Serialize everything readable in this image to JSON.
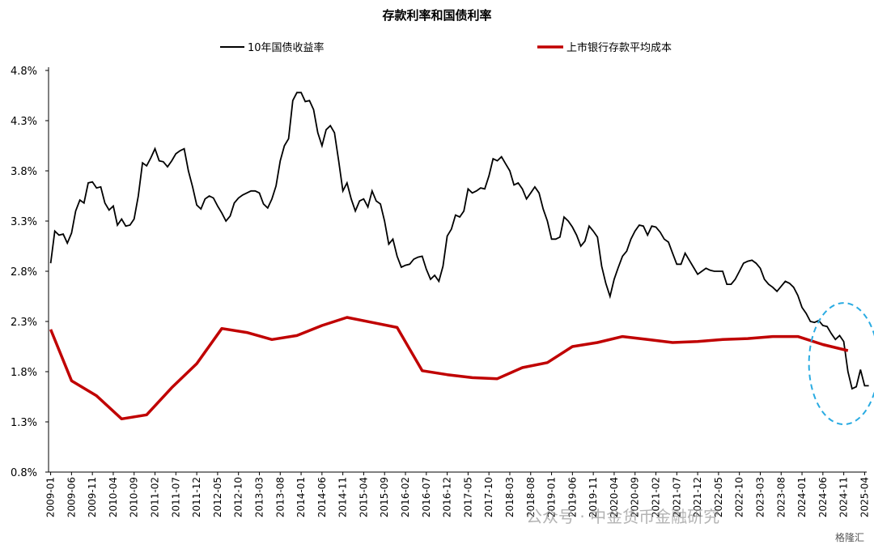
{
  "chart_data": {
    "type": "line",
    "title": "存款利率和国债利率",
    "ylim": [
      0.8,
      4.8
    ],
    "yticks": [
      0.8,
      1.3,
      1.8,
      2.3,
      2.8,
      3.3,
      3.8,
      4.3,
      4.8
    ],
    "ytick_labels": [
      "0.8%",
      "1.3%",
      "1.8%",
      "2.3%",
      "2.8%",
      "3.3%",
      "3.8%",
      "4.3%",
      "4.8%"
    ],
    "x_start": "2009-01",
    "x_end": "2025-04",
    "x_ticks": [
      "2009-01",
      "2009-06",
      "2009-11",
      "2010-04",
      "2010-09",
      "2011-02",
      "2011-07",
      "2011-12",
      "2012-05",
      "2012-10",
      "2013-03",
      "2013-08",
      "2014-01",
      "2014-06",
      "2014-11",
      "2015-04",
      "2015-09",
      "2016-02",
      "2016-07",
      "2016-12",
      "2017-05",
      "2017-10",
      "2018-03",
      "2018-08",
      "2019-01",
      "2019-06",
      "2019-11",
      "2020-04",
      "2020-09",
      "2021-02",
      "2021-07",
      "2021-12",
      "2022-05",
      "2022-10",
      "2023-03",
      "2023-08",
      "2024-01",
      "2024-06",
      "2024-11",
      "2025-04"
    ],
    "series": [
      {
        "name": "10年国债收益率",
        "color": "#000000",
        "points": [
          [
            "2009-01",
            2.88
          ],
          [
            "2009-02",
            3.2
          ],
          [
            "2009-03",
            3.16
          ],
          [
            "2009-04",
            3.17
          ],
          [
            "2009-05",
            3.08
          ],
          [
            "2009-06",
            3.18
          ],
          [
            "2009-07",
            3.4
          ],
          [
            "2009-08",
            3.51
          ],
          [
            "2009-09",
            3.48
          ],
          [
            "2009-10",
            3.68
          ],
          [
            "2009-11",
            3.69
          ],
          [
            "2009-12",
            3.63
          ],
          [
            "2010-01",
            3.64
          ],
          [
            "2010-02",
            3.48
          ],
          [
            "2010-03",
            3.41
          ],
          [
            "2010-04",
            3.45
          ],
          [
            "2010-05",
            3.26
          ],
          [
            "2010-06",
            3.32
          ],
          [
            "2010-07",
            3.25
          ],
          [
            "2010-08",
            3.26
          ],
          [
            "2010-09",
            3.32
          ],
          [
            "2010-10",
            3.55
          ],
          [
            "2010-11",
            3.88
          ],
          [
            "2010-12",
            3.85
          ],
          [
            "2011-01",
            3.93
          ],
          [
            "2011-02",
            4.02
          ],
          [
            "2011-03",
            3.9
          ],
          [
            "2011-04",
            3.89
          ],
          [
            "2011-05",
            3.84
          ],
          [
            "2011-06",
            3.9
          ],
          [
            "2011-07",
            3.97
          ],
          [
            "2011-08",
            4.0
          ],
          [
            "2011-09",
            4.02
          ],
          [
            "2011-10",
            3.8
          ],
          [
            "2011-11",
            3.64
          ],
          [
            "2011-12",
            3.46
          ],
          [
            "2012-01",
            3.42
          ],
          [
            "2012-02",
            3.52
          ],
          [
            "2012-03",
            3.55
          ],
          [
            "2012-04",
            3.53
          ],
          [
            "2012-05",
            3.45
          ],
          [
            "2012-06",
            3.38
          ],
          [
            "2012-07",
            3.3
          ],
          [
            "2012-08",
            3.35
          ],
          [
            "2012-09",
            3.48
          ],
          [
            "2012-10",
            3.53
          ],
          [
            "2012-11",
            3.56
          ],
          [
            "2012-12",
            3.58
          ],
          [
            "2013-01",
            3.6
          ],
          [
            "2013-02",
            3.6
          ],
          [
            "2013-03",
            3.58
          ],
          [
            "2013-04",
            3.47
          ],
          [
            "2013-05",
            3.43
          ],
          [
            "2013-06",
            3.52
          ],
          [
            "2013-07",
            3.65
          ],
          [
            "2013-08",
            3.9
          ],
          [
            "2013-09",
            4.05
          ],
          [
            "2013-10",
            4.12
          ],
          [
            "2013-11",
            4.5
          ],
          [
            "2013-12",
            4.58
          ],
          [
            "2014-01",
            4.58
          ],
          [
            "2014-02",
            4.49
          ],
          [
            "2014-03",
            4.5
          ],
          [
            "2014-04",
            4.41
          ],
          [
            "2014-05",
            4.18
          ],
          [
            "2014-06",
            4.05
          ],
          [
            "2014-07",
            4.21
          ],
          [
            "2014-08",
            4.25
          ],
          [
            "2014-09",
            4.18
          ],
          [
            "2014-10",
            3.9
          ],
          [
            "2014-11",
            3.6
          ],
          [
            "2014-12",
            3.68
          ],
          [
            "2015-01",
            3.52
          ],
          [
            "2015-02",
            3.4
          ],
          [
            "2015-03",
            3.5
          ],
          [
            "2015-04",
            3.52
          ],
          [
            "2015-05",
            3.44
          ],
          [
            "2015-06",
            3.6
          ],
          [
            "2015-07",
            3.5
          ],
          [
            "2015-08",
            3.47
          ],
          [
            "2015-09",
            3.3
          ],
          [
            "2015-10",
            3.07
          ],
          [
            "2015-11",
            3.12
          ],
          [
            "2015-12",
            2.95
          ],
          [
            "2016-01",
            2.84
          ],
          [
            "2016-02",
            2.86
          ],
          [
            "2016-03",
            2.87
          ],
          [
            "2016-04",
            2.92
          ],
          [
            "2016-05",
            2.94
          ],
          [
            "2016-06",
            2.95
          ],
          [
            "2016-07",
            2.82
          ],
          [
            "2016-08",
            2.72
          ],
          [
            "2016-09",
            2.76
          ],
          [
            "2016-10",
            2.7
          ],
          [
            "2016-11",
            2.85
          ],
          [
            "2016-12",
            3.15
          ],
          [
            "2017-01",
            3.22
          ],
          [
            "2017-02",
            3.36
          ],
          [
            "2017-03",
            3.34
          ],
          [
            "2017-04",
            3.4
          ],
          [
            "2017-05",
            3.62
          ],
          [
            "2017-06",
            3.58
          ],
          [
            "2017-07",
            3.6
          ],
          [
            "2017-08",
            3.63
          ],
          [
            "2017-09",
            3.62
          ],
          [
            "2017-10",
            3.75
          ],
          [
            "2017-11",
            3.92
          ],
          [
            "2017-12",
            3.9
          ],
          [
            "2018-01",
            3.94
          ],
          [
            "2018-02",
            3.87
          ],
          [
            "2018-03",
            3.8
          ],
          [
            "2018-04",
            3.66
          ],
          [
            "2018-05",
            3.68
          ],
          [
            "2018-06",
            3.62
          ],
          [
            "2018-07",
            3.52
          ],
          [
            "2018-08",
            3.58
          ],
          [
            "2018-09",
            3.64
          ],
          [
            "2018-10",
            3.58
          ],
          [
            "2018-11",
            3.42
          ],
          [
            "2018-12",
            3.3
          ],
          [
            "2019-01",
            3.12
          ],
          [
            "2019-02",
            3.12
          ],
          [
            "2019-03",
            3.14
          ],
          [
            "2019-04",
            3.34
          ],
          [
            "2019-05",
            3.3
          ],
          [
            "2019-06",
            3.24
          ],
          [
            "2019-07",
            3.16
          ],
          [
            "2019-08",
            3.05
          ],
          [
            "2019-09",
            3.1
          ],
          [
            "2019-10",
            3.25
          ],
          [
            "2019-11",
            3.2
          ],
          [
            "2019-12",
            3.14
          ],
          [
            "2020-01",
            2.85
          ],
          [
            "2020-02",
            2.68
          ],
          [
            "2020-03",
            2.55
          ],
          [
            "2020-04",
            2.72
          ],
          [
            "2020-05",
            2.84
          ],
          [
            "2020-06",
            2.95
          ],
          [
            "2020-07",
            3.0
          ],
          [
            "2020-08",
            3.12
          ],
          [
            "2020-09",
            3.2
          ],
          [
            "2020-10",
            3.26
          ],
          [
            "2020-11",
            3.25
          ],
          [
            "2020-12",
            3.16
          ],
          [
            "2021-01",
            3.25
          ],
          [
            "2021-02",
            3.24
          ],
          [
            "2021-03",
            3.19
          ],
          [
            "2021-04",
            3.12
          ],
          [
            "2021-05",
            3.09
          ],
          [
            "2021-06",
            2.98
          ],
          [
            "2021-07",
            2.87
          ],
          [
            "2021-08",
            2.87
          ],
          [
            "2021-09",
            2.98
          ],
          [
            "2021-10",
            2.91
          ],
          [
            "2021-11",
            2.84
          ],
          [
            "2021-12",
            2.77
          ],
          [
            "2022-01",
            2.8
          ],
          [
            "2022-02",
            2.83
          ],
          [
            "2022-03",
            2.81
          ],
          [
            "2022-04",
            2.8
          ],
          [
            "2022-05",
            2.8
          ],
          [
            "2022-06",
            2.8
          ],
          [
            "2022-07",
            2.67
          ],
          [
            "2022-08",
            2.67
          ],
          [
            "2022-09",
            2.72
          ],
          [
            "2022-10",
            2.8
          ],
          [
            "2022-11",
            2.88
          ],
          [
            "2022-12",
            2.9
          ],
          [
            "2023-01",
            2.91
          ],
          [
            "2023-02",
            2.88
          ],
          [
            "2023-03",
            2.83
          ],
          [
            "2023-04",
            2.72
          ],
          [
            "2023-05",
            2.67
          ],
          [
            "2023-06",
            2.64
          ],
          [
            "2023-07",
            2.6
          ],
          [
            "2023-08",
            2.65
          ],
          [
            "2023-09",
            2.7
          ],
          [
            "2023-10",
            2.68
          ],
          [
            "2023-11",
            2.64
          ],
          [
            "2023-12",
            2.56
          ],
          [
            "2024-01",
            2.44
          ],
          [
            "2024-02",
            2.38
          ],
          [
            "2024-03",
            2.3
          ],
          [
            "2024-04",
            2.29
          ],
          [
            "2024-05",
            2.31
          ],
          [
            "2024-06",
            2.26
          ],
          [
            "2024-07",
            2.25
          ],
          [
            "2024-08",
            2.18
          ],
          [
            "2024-09",
            2.12
          ],
          [
            "2024-10",
            2.16
          ],
          [
            "2024-11",
            2.1
          ],
          [
            "2024-12",
            1.8
          ],
          [
            "2025-01",
            1.63
          ],
          [
            "2025-02",
            1.65
          ],
          [
            "2025-03",
            1.82
          ],
          [
            "2025-04",
            1.66
          ],
          [
            "2025-05",
            1.66
          ]
        ]
      },
      {
        "name": "上市银行存款平均成本",
        "color": "#c00000",
        "points": [
          [
            "2009-01",
            2.22
          ],
          [
            "2009-06",
            1.71
          ],
          [
            "2009-12",
            1.56
          ],
          [
            "2010-06",
            1.33
          ],
          [
            "2010-12",
            1.37
          ],
          [
            "2011-06",
            1.64
          ],
          [
            "2011-12",
            1.88
          ],
          [
            "2012-06",
            2.23
          ],
          [
            "2012-12",
            2.19
          ],
          [
            "2013-06",
            2.12
          ],
          [
            "2013-12",
            2.16
          ],
          [
            "2014-06",
            2.26
          ],
          [
            "2014-12",
            2.34
          ],
          [
            "2015-06",
            2.29
          ],
          [
            "2015-12",
            2.24
          ],
          [
            "2016-06",
            1.81
          ],
          [
            "2016-12",
            1.77
          ],
          [
            "2017-06",
            1.74
          ],
          [
            "2017-12",
            1.73
          ],
          [
            "2018-06",
            1.84
          ],
          [
            "2018-12",
            1.89
          ],
          [
            "2019-06",
            2.05
          ],
          [
            "2019-12",
            2.09
          ],
          [
            "2020-06",
            2.15
          ],
          [
            "2020-12",
            2.12
          ],
          [
            "2021-06",
            2.09
          ],
          [
            "2021-12",
            2.1
          ],
          [
            "2022-06",
            2.12
          ],
          [
            "2022-12",
            2.13
          ],
          [
            "2023-06",
            2.15
          ],
          [
            "2023-12",
            2.15
          ],
          [
            "2024-06",
            2.07
          ],
          [
            "2024-12",
            2.01
          ]
        ]
      }
    ],
    "annotation": "dashed ellipse highlighting 2024-2025",
    "annotation_color": "#29abe2",
    "watermark": "公众号 · 中金货币金融研究",
    "watermark2": "格隆汇"
  }
}
